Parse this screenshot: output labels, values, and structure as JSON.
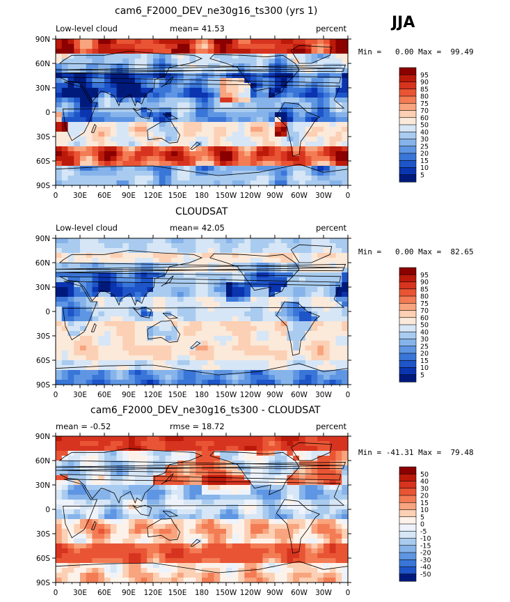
{
  "season": "JJA",
  "panels": [
    {
      "title": "cam6_F2000_DEV_ne30g16_ts300 (yrs 1)",
      "left_label": "Low-level cloud",
      "center_label": "mean=  41.53",
      "right_label": "percent",
      "min_max": "Min =   0.00 Max =  99.49",
      "colorbar_labels": [
        "95",
        "90",
        "85",
        "80",
        "75",
        "70",
        "60",
        "50",
        "40",
        "30",
        "25",
        "20",
        "15",
        "10",
        "5"
      ],
      "palette": "cloud"
    },
    {
      "title": "CLOUDSAT",
      "left_label": "Low-level cloud",
      "center_label": "mean=  42.05",
      "right_label": "percent",
      "min_max": "Min =   0.00 Max =  82.65",
      "colorbar_labels": [
        "95",
        "90",
        "85",
        "80",
        "75",
        "70",
        "60",
        "50",
        "40",
        "30",
        "25",
        "20",
        "15",
        "10",
        "5"
      ],
      "palette": "cloud"
    },
    {
      "title": "cam6_F2000_DEV_ne30g16_ts300 - CLOUDSAT",
      "left_label": "mean =  -0.52",
      "center_label": "rmse =  18.72",
      "right_label": "percent",
      "min_max": "Min = -41.31 Max =  79.48",
      "colorbar_labels": [
        "50",
        "40",
        "30",
        "20",
        "15",
        "10",
        "5",
        "0",
        "-5",
        "-10",
        "-15",
        "-20",
        "-30",
        "-40",
        "-50"
      ],
      "palette": "diff"
    }
  ],
  "lat_labels": [
    "90N",
    "60N",
    "30N",
    "0",
    "30S",
    "60S",
    "90S"
  ],
  "lon_labels": [
    "0",
    "30E",
    "60E",
    "90E",
    "120E",
    "150E",
    "180",
    "150W",
    "120W",
    "90W",
    "60W",
    "30W",
    "0"
  ],
  "palettes": {
    "cloud": [
      "#8b0000",
      "#bb1a0a",
      "#d73420",
      "#e95534",
      "#f37c55",
      "#f8a47e",
      "#fcd0b4",
      "#fbe9da",
      "#d6e6f6",
      "#a9cbef",
      "#86b3ea",
      "#5f96e3",
      "#3a76d8",
      "#1e55c9",
      "#0b34b0",
      "#001a7c"
    ],
    "diff": [
      "#8b0000",
      "#bb1a0a",
      "#d73420",
      "#e95534",
      "#f37c55",
      "#f8a47e",
      "#fcd0b4",
      "#fdf2ea",
      "#eef3fb",
      "#d6e6f6",
      "#a9cbef",
      "#86b3ea",
      "#5f96e3",
      "#3a76d8",
      "#1e55c9",
      "#001a7c"
    ]
  }
}
